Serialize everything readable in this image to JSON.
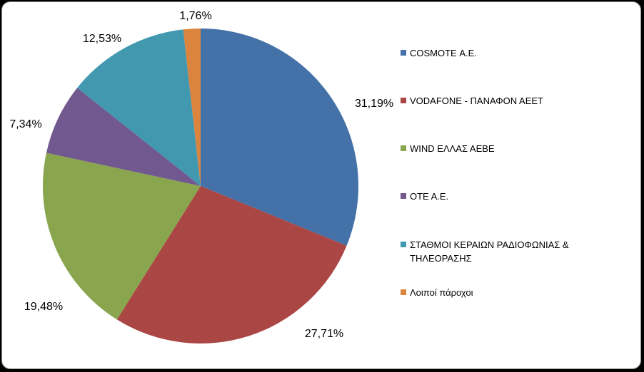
{
  "chart_data": {
    "type": "pie",
    "title": "",
    "slices": [
      {
        "name": "COSMOTE Α.Ε.",
        "value": 31.19,
        "label": "31,19%",
        "color": "#4472A8"
      },
      {
        "name": "VODAFONE - ΠΑΝΑΦΟΝ ΑΕΕΤ",
        "value": 27.71,
        "label": "27,71%",
        "color": "#AA4643"
      },
      {
        "name": "WIND ΕΛΛΑΣ ΑΕΒΕ",
        "value": 19.48,
        "label": "19,48%",
        "color": "#89A54E"
      },
      {
        "name": "ΟΤΕ Α.Ε.",
        "value": 7.34,
        "label": "7,34%",
        "color": "#71588F"
      },
      {
        "name": "ΣΤΑΘΜΟΙ ΚΕΡΑΙΩΝ ΡΑΔΙΟΦΩΝΙΑΣ & ΤΗΛΕΟΡΑΣΗΣ",
        "value": 12.53,
        "label": "12,53%",
        "color": "#4198AF"
      },
      {
        "name": "Λοιποί πάροχοι",
        "value": 1.76,
        "label": "1,76%",
        "color": "#DB843D"
      }
    ],
    "legend_position": "right"
  }
}
